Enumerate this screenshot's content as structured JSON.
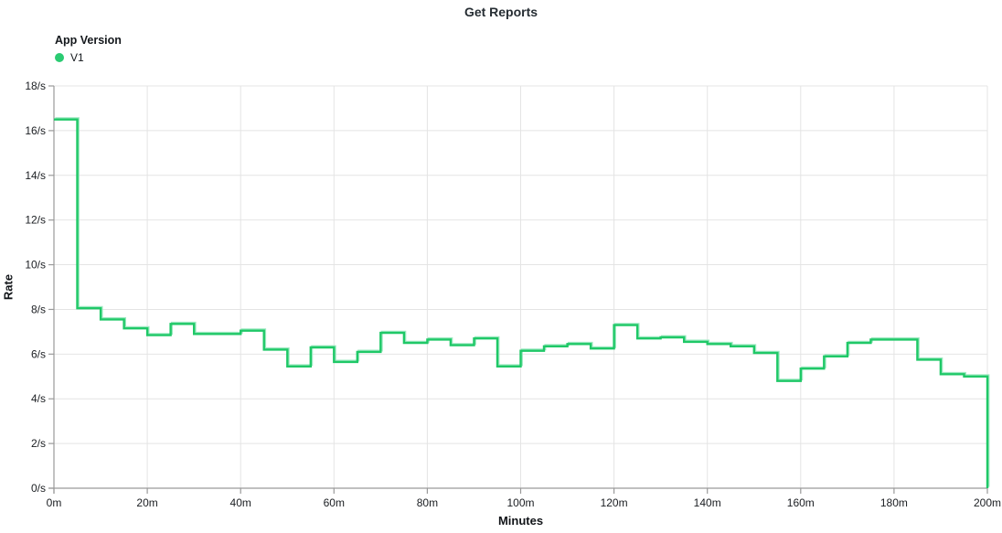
{
  "title": "Get Reports",
  "legend": {
    "title": "App Version",
    "items": [
      {
        "label": "V1",
        "color": "#2bcb72"
      }
    ]
  },
  "colors": {
    "line": "#1fc867",
    "line_halo": "#9ae9bf",
    "grid": "#e4e4e4",
    "axis": "#9a9a9a",
    "tick_text": "#1a1d21"
  },
  "chart_data": {
    "type": "line",
    "line_style": "step-after",
    "title": "Get Reports",
    "xlabel": "Minutes",
    "ylabel": "Rate",
    "xlim": [
      0,
      200
    ],
    "ylim": [
      0,
      18
    ],
    "grid": true,
    "legend_position": "top-left",
    "x_ticks": [
      {
        "v": 0,
        "label": "0m"
      },
      {
        "v": 20,
        "label": "20m"
      },
      {
        "v": 40,
        "label": "40m"
      },
      {
        "v": 60,
        "label": "60m"
      },
      {
        "v": 80,
        "label": "80m"
      },
      {
        "v": 100,
        "label": "100m"
      },
      {
        "v": 120,
        "label": "120m"
      },
      {
        "v": 140,
        "label": "140m"
      },
      {
        "v": 160,
        "label": "160m"
      },
      {
        "v": 180,
        "label": "180m"
      },
      {
        "v": 200,
        "label": "200m"
      }
    ],
    "y_ticks": [
      {
        "v": 0,
        "label": "0/s"
      },
      {
        "v": 2,
        "label": "2/s"
      },
      {
        "v": 4,
        "label": "4/s"
      },
      {
        "v": 6,
        "label": "6/s"
      },
      {
        "v": 8,
        "label": "8/s"
      },
      {
        "v": 10,
        "label": "10/s"
      },
      {
        "v": 12,
        "label": "12/s"
      },
      {
        "v": 14,
        "label": "14/s"
      },
      {
        "v": 16,
        "label": "16/s"
      },
      {
        "v": 18,
        "label": "18/s"
      }
    ],
    "series": [
      {
        "name": "V1",
        "color": "#1fc867",
        "step_minutes": 5,
        "x": [
          0,
          5,
          10,
          15,
          20,
          25,
          30,
          35,
          40,
          45,
          50,
          55,
          60,
          65,
          70,
          75,
          80,
          85,
          90,
          95,
          100,
          105,
          110,
          115,
          120,
          125,
          130,
          135,
          140,
          145,
          150,
          155,
          160,
          165,
          170,
          175,
          180,
          185,
          190,
          195
        ],
        "values": [
          16.5,
          8.05,
          7.55,
          7.15,
          6.85,
          7.35,
          6.9,
          6.9,
          7.05,
          6.2,
          5.45,
          6.3,
          5.65,
          6.1,
          6.95,
          6.5,
          6.65,
          6.4,
          6.7,
          5.45,
          6.15,
          6.35,
          6.45,
          6.25,
          7.3,
          6.7,
          6.75,
          6.55,
          6.45,
          6.35,
          6.05,
          4.8,
          5.35,
          5.9,
          6.5,
          6.65,
          6.65,
          5.75,
          5.1,
          5.0
        ],
        "ends_at": 200,
        "final_drop_to_zero": true
      }
    ]
  }
}
